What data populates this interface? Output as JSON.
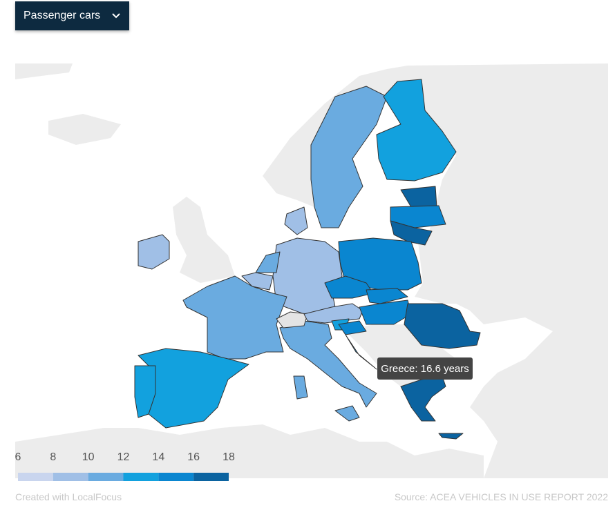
{
  "dropdown": {
    "label": "Passenger cars"
  },
  "tooltip": {
    "text": "Greece: 16.6 years"
  },
  "legend": {
    "ticks": [
      6,
      8,
      10,
      12,
      14,
      16,
      18
    ],
    "colors": [
      "#c9d5ee",
      "#a0bfe6",
      "#6aabe0",
      "#12a1de",
      "#0a86d0",
      "#0b63a0"
    ]
  },
  "footer": {
    "credit": "Created with LocalFocus",
    "source": "Source: ACEA VEHICLES IN USE REPORT 2022"
  }
}
